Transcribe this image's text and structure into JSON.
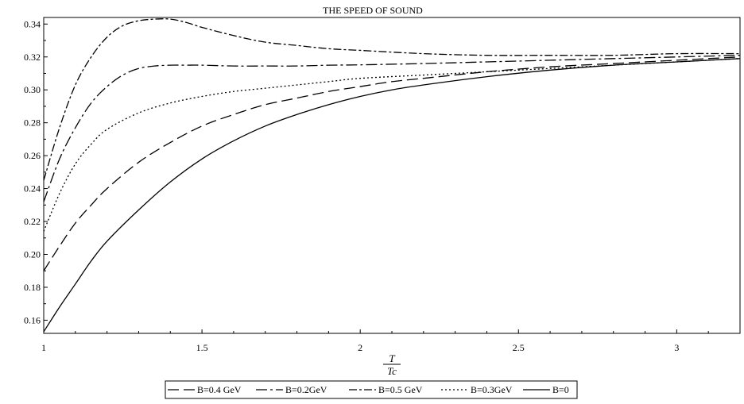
{
  "chart_data": {
    "type": "line",
    "title": "THE SPEED OF SOUND",
    "xlabel_numerator": "T",
    "xlabel_denominator": "Tc",
    "ylabel": "",
    "xlim": [
      1,
      3.2
    ],
    "ylim": [
      0.152,
      0.344
    ],
    "x_ticks": [
      "1",
      "1.5",
      "2",
      "2.5",
      "3"
    ],
    "y_ticks": [
      "0.16",
      "0.18",
      "0.20",
      "0.22",
      "0.24",
      "0.26",
      "0.28",
      "0.30",
      "0.32",
      "0.34"
    ],
    "grid": false,
    "legend_position": "bottom",
    "legend_order": [
      "B=0.4 GeV",
      "B=0.2GeV",
      "B=0.5 GeV",
      "B=0.3GeV",
      "B=0"
    ],
    "series": [
      {
        "name": "B=0",
        "dash": "solid",
        "x": [
          1.0,
          1.05,
          1.1,
          1.15,
          1.2,
          1.3,
          1.4,
          1.5,
          1.6,
          1.7,
          1.8,
          1.9,
          2.0,
          2.1,
          2.2,
          2.4,
          2.6,
          2.8,
          3.0,
          3.2
        ],
        "y": [
          0.153,
          0.168,
          0.182,
          0.196,
          0.208,
          0.227,
          0.244,
          0.258,
          0.269,
          0.278,
          0.285,
          0.291,
          0.296,
          0.3,
          0.303,
          0.308,
          0.312,
          0.315,
          0.317,
          0.319
        ]
      },
      {
        "name": "B=0.4 GeV",
        "dash": "long-dash",
        "x": [
          1.0,
          1.05,
          1.1,
          1.15,
          1.2,
          1.3,
          1.4,
          1.5,
          1.6,
          1.7,
          1.8,
          1.9,
          2.0,
          2.1,
          2.2,
          2.4,
          2.6,
          2.8,
          3.0,
          3.2
        ],
        "y": [
          0.19,
          0.205,
          0.219,
          0.23,
          0.24,
          0.256,
          0.268,
          0.278,
          0.285,
          0.291,
          0.295,
          0.299,
          0.302,
          0.305,
          0.307,
          0.311,
          0.314,
          0.316,
          0.318,
          0.32
        ]
      },
      {
        "name": "B=0.3GeV",
        "dash": "dotted",
        "x": [
          1.0,
          1.05,
          1.1,
          1.15,
          1.2,
          1.3,
          1.4,
          1.5,
          1.6,
          1.7,
          1.8,
          1.9,
          2.0,
          2.2,
          2.4,
          2.6,
          2.8,
          3.0,
          3.2
        ],
        "y": [
          0.214,
          0.237,
          0.255,
          0.267,
          0.276,
          0.286,
          0.292,
          0.296,
          0.299,
          0.301,
          0.303,
          0.305,
          0.307,
          0.309,
          0.311,
          0.313,
          0.315,
          0.317,
          0.319
        ]
      },
      {
        "name": "B=0.2GeV",
        "dash": "dash-dot",
        "x": [
          1.0,
          1.05,
          1.1,
          1.15,
          1.2,
          1.25,
          1.3,
          1.35,
          1.4,
          1.45,
          1.5,
          1.6,
          1.7,
          1.8,
          1.9,
          2.0,
          2.2,
          2.4,
          2.6,
          2.8,
          3.0,
          3.2
        ],
        "y": [
          0.232,
          0.258,
          0.277,
          0.292,
          0.302,
          0.309,
          0.313,
          0.3145,
          0.315,
          0.315,
          0.315,
          0.3145,
          0.3145,
          0.3145,
          0.315,
          0.3152,
          0.316,
          0.317,
          0.318,
          0.319,
          0.32,
          0.321
        ]
      },
      {
        "name": "B=0.5 GeV",
        "dash": "dash-dot-long",
        "x": [
          1.0,
          1.05,
          1.1,
          1.15,
          1.2,
          1.25,
          1.3,
          1.35,
          1.4,
          1.45,
          1.5,
          1.6,
          1.7,
          1.8,
          1.9,
          2.0,
          2.2,
          2.4,
          2.6,
          2.8,
          3.0,
          3.2
        ],
        "y": [
          0.245,
          0.277,
          0.303,
          0.32,
          0.332,
          0.339,
          0.342,
          0.343,
          0.343,
          0.341,
          0.338,
          0.333,
          0.329,
          0.327,
          0.325,
          0.324,
          0.322,
          0.321,
          0.321,
          0.321,
          0.322,
          0.322
        ]
      }
    ]
  }
}
